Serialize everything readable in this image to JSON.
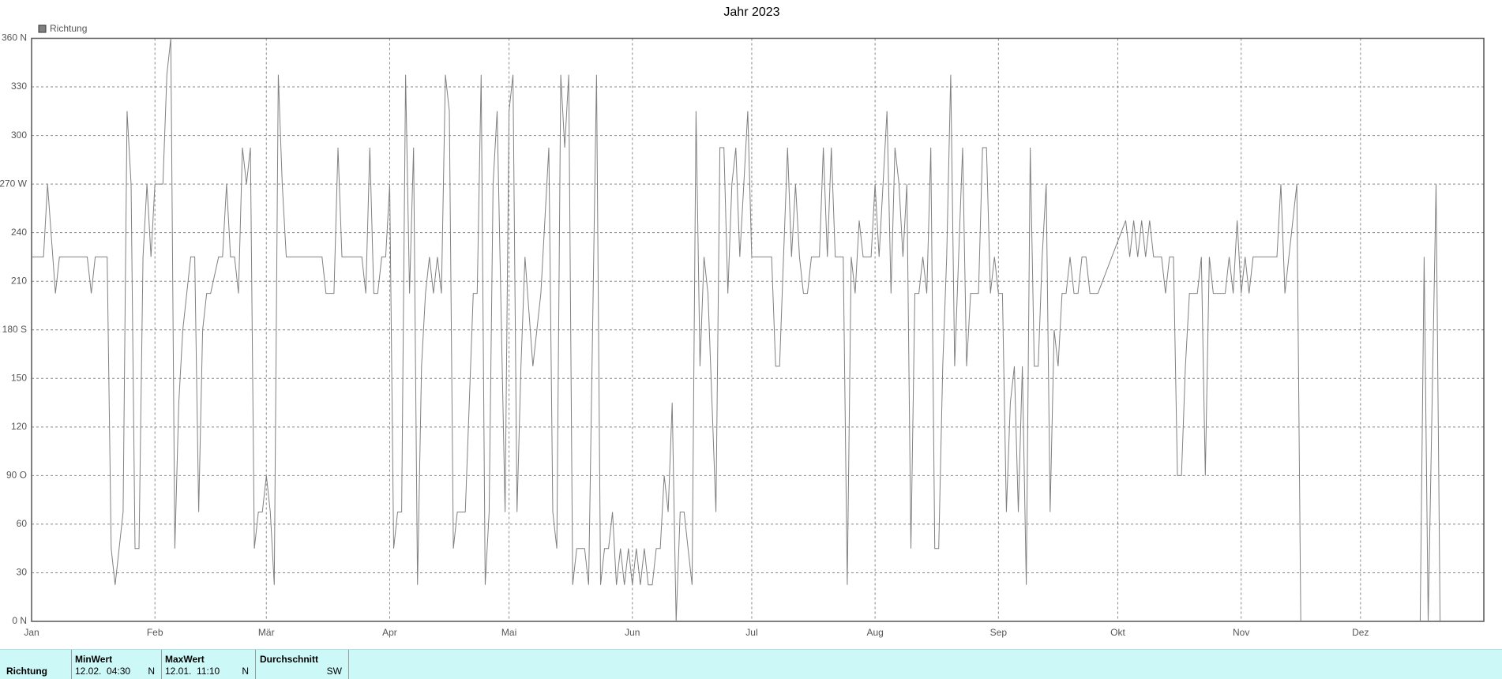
{
  "chart_data": {
    "type": "line",
    "title": "Jahr 2023",
    "x": [
      0,
      3,
      4,
      6,
      7,
      14,
      15,
      16,
      19,
      20,
      21,
      23,
      24,
      25,
      26,
      27,
      28,
      29,
      30,
      31,
      33,
      34,
      35,
      36,
      37,
      38,
      40,
      41,
      42,
      43,
      44,
      45,
      47,
      48,
      49,
      50,
      51,
      52,
      53,
      54,
      55,
      56,
      57,
      58,
      59,
      60,
      61,
      62,
      63,
      64,
      73,
      74,
      76,
      77,
      78,
      83,
      84,
      85,
      86,
      87,
      88,
      89,
      90,
      91,
      92,
      93,
      94,
      95,
      96,
      97,
      98,
      99,
      100,
      101,
      102,
      103,
      104,
      105,
      106,
      107,
      109,
      111,
      112,
      113,
      114,
      115,
      116,
      117,
      119,
      120,
      121,
      122,
      123,
      124,
      126,
      128,
      130,
      131,
      132,
      133,
      134,
      135,
      136,
      137,
      139,
      140,
      142,
      143,
      144,
      145,
      146,
      147,
      148,
      149,
      150,
      151,
      152,
      153,
      154,
      155,
      156,
      157,
      158,
      159,
      160,
      161,
      162,
      163,
      164,
      165,
      166,
      167,
      168,
      169,
      170,
      171,
      172,
      173,
      174,
      175,
      176,
      177,
      178,
      179,
      180,
      181,
      186,
      187,
      188,
      189,
      190,
      191,
      192,
      193,
      194,
      195,
      196,
      198,
      199,
      200,
      201,
      202,
      204,
      205,
      206,
      207,
      208,
      209,
      211,
      212,
      213,
      214,
      215,
      216,
      217,
      218,
      219,
      220,
      221,
      222,
      223,
      224,
      225,
      226,
      227,
      228,
      229,
      230,
      231,
      232,
      233,
      234,
      235,
      236,
      238,
      239,
      240,
      241,
      242,
      243,
      244,
      245,
      246,
      247,
      248,
      249,
      250,
      251,
      252,
      253,
      254,
      255,
      256,
      257,
      258,
      259,
      260,
      261,
      262,
      263,
      264,
      265,
      266,
      268,
      275,
      276,
      277,
      278,
      279,
      280,
      281,
      282,
      284,
      285,
      286,
      287,
      288,
      289,
      290,
      291,
      293,
      294,
      295,
      296,
      297,
      300,
      301,
      302,
      303,
      304,
      305,
      306,
      307,
      313,
      314,
      315,
      316,
      318,
      319,
      null,
      349,
      350,
      351,
      353,
      354
    ],
    "series": [
      {
        "name": "Richtung",
        "color": "#808080",
        "values": [
          225,
          225,
          270,
          202.5,
          225,
          225,
          202.5,
          225,
          225,
          45,
          22.5,
          67.5,
          315,
          270,
          45,
          45,
          225,
          270,
          225,
          270,
          270,
          337.5,
          360,
          45,
          135,
          180,
          225,
          225,
          67.5,
          180,
          202.5,
          202.5,
          225,
          225,
          270,
          225,
          225,
          202.5,
          292.5,
          270,
          292.5,
          45,
          67.5,
          67.5,
          90,
          67.5,
          22.5,
          337.5,
          270,
          225,
          225,
          202.5,
          202.5,
          292.5,
          225,
          225,
          202.5,
          292.5,
          202.5,
          202.5,
          225,
          225,
          270,
          45,
          67.5,
          67.5,
          337.5,
          202.5,
          292.5,
          22.5,
          157.5,
          202.5,
          225,
          202.5,
          225,
          202.5,
          337.5,
          315,
          45,
          67.5,
          67.5,
          202.5,
          202.5,
          337.5,
          22.5,
          67.5,
          270,
          315,
          67.5,
          315,
          337.5,
          67.5,
          157.5,
          225,
          157.5,
          202.5,
          292.5,
          67.5,
          45,
          337.5,
          292.5,
          337.5,
          22.5,
          45,
          45,
          22.5,
          337.5,
          22.5,
          45,
          45,
          67.5,
          22.5,
          45,
          22.5,
          45,
          22.5,
          45,
          22.5,
          45,
          22.5,
          22.5,
          45,
          45,
          90,
          67.5,
          135,
          0,
          67.5,
          67.5,
          45,
          22.5,
          315,
          157.5,
          225,
          202.5,
          135,
          67.5,
          292.5,
          292.5,
          202.5,
          270,
          292.5,
          225,
          270,
          315,
          225,
          225,
          157.5,
          157.5,
          225,
          292.5,
          225,
          270,
          225,
          202.5,
          202.5,
          225,
          225,
          292.5,
          225,
          292.5,
          225,
          225,
          22.5,
          225,
          202.5,
          247.5,
          225,
          225,
          270,
          225,
          270,
          315,
          202.5,
          292.5,
          270,
          225,
          270,
          45,
          202.5,
          202.5,
          225,
          202.5,
          292.5,
          45,
          45,
          157.5,
          225,
          337.5,
          157.5,
          225,
          292.5,
          157.5,
          202.5,
          202.5,
          292.5,
          292.5,
          202.5,
          225,
          202.5,
          202.5,
          67.5,
          135,
          157.5,
          67.5,
          157.5,
          22.5,
          292.5,
          157.5,
          157.5,
          225,
          270,
          67.5,
          180,
          157.5,
          202.5,
          202.5,
          225,
          202.5,
          202.5,
          225,
          225,
          202.5,
          202.5,
          247.5,
          225,
          247.5,
          225,
          247.5,
          225,
          247.5,
          225,
          225,
          202.5,
          225,
          225,
          90,
          90,
          157.5,
          202.5,
          202.5,
          225,
          90,
          225,
          202.5,
          202.5,
          225,
          202.5,
          247.5,
          202.5,
          225,
          202.5,
          225,
          225,
          270,
          202.5,
          225,
          270,
          0,
          null,
          0,
          225,
          0,
          270,
          0
        ]
      }
    ],
    "xlim": [
      0,
      365
    ],
    "xticks": [
      {
        "value": 0,
        "label": "Jan"
      },
      {
        "value": 31,
        "label": "Feb"
      },
      {
        "value": 59,
        "label": "Mär"
      },
      {
        "value": 90,
        "label": "Apr"
      },
      {
        "value": 120,
        "label": "Mai"
      },
      {
        "value": 151,
        "label": "Jun"
      },
      {
        "value": 181,
        "label": "Jul"
      },
      {
        "value": 212,
        "label": "Aug"
      },
      {
        "value": 243,
        "label": "Sep"
      },
      {
        "value": 273,
        "label": "Okt"
      },
      {
        "value": 304,
        "label": "Nov"
      },
      {
        "value": 334,
        "label": "Dez"
      }
    ],
    "ylim": [
      0,
      360
    ],
    "yticks": [
      {
        "value": 0,
        "label": "0 N"
      },
      30,
      60,
      {
        "value": 90,
        "label": "90 O"
      },
      120,
      150,
      {
        "value": 180,
        "label": "180 S"
      },
      210,
      240,
      {
        "value": 270,
        "label": "270 W"
      },
      300,
      330,
      {
        "value": 360,
        "label": "360 N"
      }
    ],
    "grid": true
  },
  "table": {
    "header": [
      "MinWert",
      "MaxWert",
      "Durchschnitt"
    ],
    "rows": [
      [
        "Richtung",
        "12.02.  04:30",
        "N",
        "12.01.  11:10",
        "N",
        "SW"
      ]
    ]
  }
}
